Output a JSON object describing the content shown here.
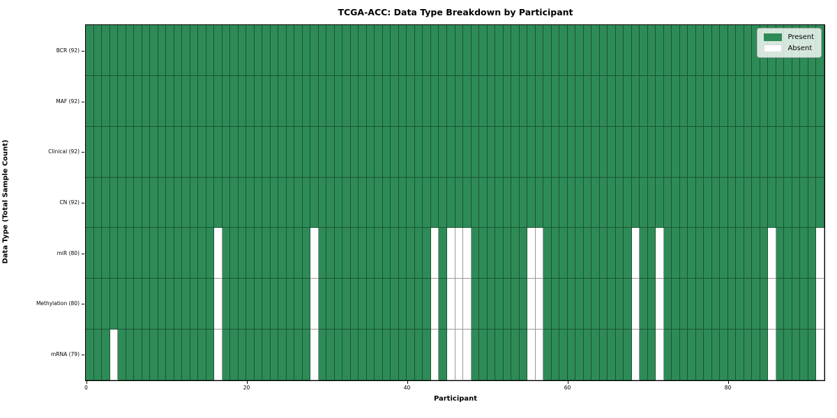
{
  "chart_data": {
    "type": "heatmap",
    "title": "TCGA-ACC: Data Type Breakdown by Participant",
    "xlabel": "Participant",
    "ylabel": "Data Type (Total Sample Count)",
    "n_participants": 92,
    "x_ticks": [
      0,
      20,
      40,
      60,
      80
    ],
    "x_range": [
      0,
      92
    ],
    "grid": true,
    "rows": [
      {
        "label": "BCR (92)",
        "total": 92,
        "absent_participants": []
      },
      {
        "label": "MAF (92)",
        "total": 92,
        "absent_participants": []
      },
      {
        "label": "Clinical (92)",
        "total": 92,
        "absent_participants": []
      },
      {
        "label": "CN (92)",
        "total": 92,
        "absent_participants": []
      },
      {
        "label": "miR (80)",
        "total": 80,
        "absent_participants": [
          16,
          28,
          43,
          45,
          46,
          47,
          55,
          56,
          68,
          71,
          85,
          91
        ]
      },
      {
        "label": "Methylation (80)",
        "total": 80,
        "absent_participants": [
          16,
          28,
          43,
          45,
          46,
          47,
          55,
          56,
          68,
          71,
          85,
          91
        ]
      },
      {
        "label": "mRNA (79)",
        "total": 79,
        "absent_participants": [
          3,
          16,
          28,
          43,
          45,
          46,
          47,
          55,
          56,
          68,
          71,
          85,
          91
        ]
      }
    ],
    "legend": {
      "position": "upper right",
      "entries": [
        {
          "label": "Present",
          "color": "#2e8b57"
        },
        {
          "label": "Absent",
          "color": "#ffffff"
        }
      ]
    },
    "colors": {
      "present": "#2e8b57",
      "absent": "#ffffff",
      "cell_border": "rgba(0,0,0,0.40)",
      "axis_frame": "#000000"
    }
  }
}
